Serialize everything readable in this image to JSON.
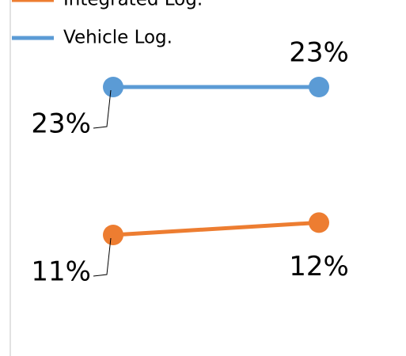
{
  "chart_data": {
    "type": "line",
    "categories": [
      null,
      null
    ],
    "series": [
      {
        "name": "Integrated Log.",
        "color": "#ed7d31",
        "values": [
          11,
          12
        ],
        "value_labels": [
          "11%",
          "12%"
        ]
      },
      {
        "name": "Vehicle Log.",
        "color": "#5b9bd5",
        "values": [
          23,
          23
        ],
        "value_labels": [
          "23%",
          "23%"
        ]
      }
    ]
  }
}
